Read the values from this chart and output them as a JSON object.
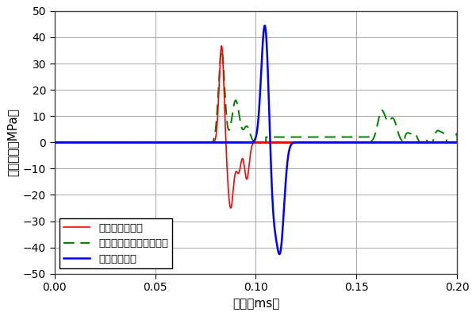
{
  "xlim": [
    0,
    0.2
  ],
  "ylim": [
    -50,
    50
  ],
  "xlabel": "時刻（ms）",
  "ylabel": "応力成分（MPa）",
  "xticks": [
    0,
    0.05,
    0.1,
    0.15,
    0.2
  ],
  "yticks": [
    -50,
    -40,
    -30,
    -20,
    -10,
    0,
    10,
    20,
    30,
    40,
    50
  ],
  "grid_color": "#999999",
  "bg_color": "#ffffff",
  "legend": [
    {
      "label": "圧力（弾性体）",
      "color": "#ff0000",
      "linestyle": "solid"
    },
    {
      "label": "ミーゼス応力（弾性体）",
      "color": "#008000",
      "linestyle": "dashed"
    },
    {
      "label": "圧力（液体）",
      "color": "#0000ff",
      "linestyle": "solid"
    }
  ]
}
